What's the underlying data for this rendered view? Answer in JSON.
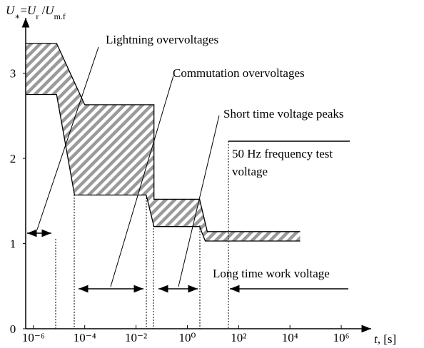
{
  "chart_data": {
    "type": "band",
    "y_label": [
      "U",
      "∗",
      "=",
      "U",
      "r",
      " /",
      "U",
      "m.f"
    ],
    "x_label": [
      "t",
      ", [s]"
    ],
    "xlog": true,
    "xlim": [
      5e-07,
      10000000
    ],
    "ylim": [
      0,
      3.6
    ],
    "xticks": [
      {
        "value": 1e-06,
        "label": "10⁻⁶"
      },
      {
        "value": 0.0001,
        "label": "10⁻⁴"
      },
      {
        "value": 0.01,
        "label": "10⁻²"
      },
      {
        "value": 1,
        "label": "10⁰"
      },
      {
        "value": 100,
        "label": "10²"
      },
      {
        "value": 10000,
        "label": "10⁴"
      },
      {
        "value": 1000000,
        "label": "10⁶"
      }
    ],
    "yticks": [
      0,
      1,
      2,
      3
    ],
    "series": [
      {
        "name": "upper",
        "x": [
          5e-07,
          8e-06,
          0.0001,
          0.05,
          0.05,
          3,
          6,
          25000
        ],
        "values": [
          3.35,
          3.35,
          2.63,
          2.63,
          1.52,
          1.52,
          1.14,
          1.14
        ]
      },
      {
        "name": "lower",
        "x": [
          5e-07,
          8e-06,
          4e-05,
          0.025,
          0.05,
          3,
          5,
          25000
        ],
        "values": [
          2.75,
          2.75,
          1.57,
          1.57,
          1.2,
          1.2,
          1.03,
          1.03
        ]
      }
    ],
    "annotations": [
      "Lightning overvoltages",
      "Commutation overvoltages",
      "Short time voltage peaks",
      "50 Hz frequency test",
      "voltage",
      "Long time work voltage"
    ]
  }
}
